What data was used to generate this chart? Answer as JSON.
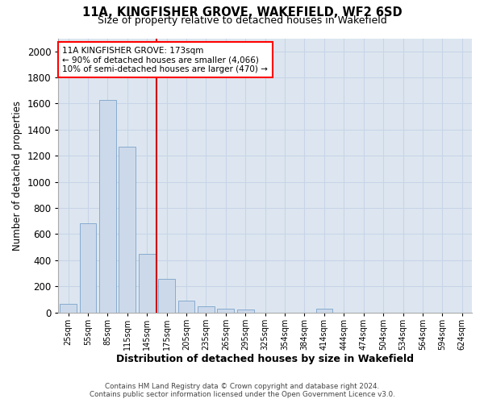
{
  "title1": "11A, KINGFISHER GROVE, WAKEFIELD, WF2 6SD",
  "title2": "Size of property relative to detached houses in Wakefield",
  "xlabel": "Distribution of detached houses by size in Wakefield",
  "ylabel": "Number of detached properties",
  "footer1": "Contains HM Land Registry data © Crown copyright and database right 2024.",
  "footer2": "Contains public sector information licensed under the Open Government Licence v3.0.",
  "annotation_line1": "11A KINGFISHER GROVE: 173sqm",
  "annotation_line2": "← 90% of detached houses are smaller (4,066)",
  "annotation_line3": "10% of semi-detached houses are larger (470) →",
  "bar_color": "#ccd9ea",
  "bar_edge_color": "#7ba3cb",
  "vline_color": "#cc0000",
  "vline_x_idx": 4.5,
  "categories": [
    "25sqm",
    "55sqm",
    "85sqm",
    "115sqm",
    "145sqm",
    "175sqm",
    "205sqm",
    "235sqm",
    "265sqm",
    "295sqm",
    "325sqm",
    "354sqm",
    "384sqm",
    "414sqm",
    "444sqm",
    "474sqm",
    "504sqm",
    "534sqm",
    "564sqm",
    "594sqm",
    "624sqm"
  ],
  "values": [
    65,
    680,
    1630,
    1270,
    450,
    255,
    90,
    50,
    30,
    25,
    0,
    0,
    0,
    30,
    0,
    0,
    0,
    0,
    0,
    0,
    0
  ],
  "ylim": [
    0,
    2100
  ],
  "yticks": [
    0,
    200,
    400,
    600,
    800,
    1000,
    1200,
    1400,
    1600,
    1800,
    2000
  ],
  "grid_color": "#c8d4e8",
  "plot_bg_color": "#dde6f0",
  "fig_bg_color": "#ffffff"
}
